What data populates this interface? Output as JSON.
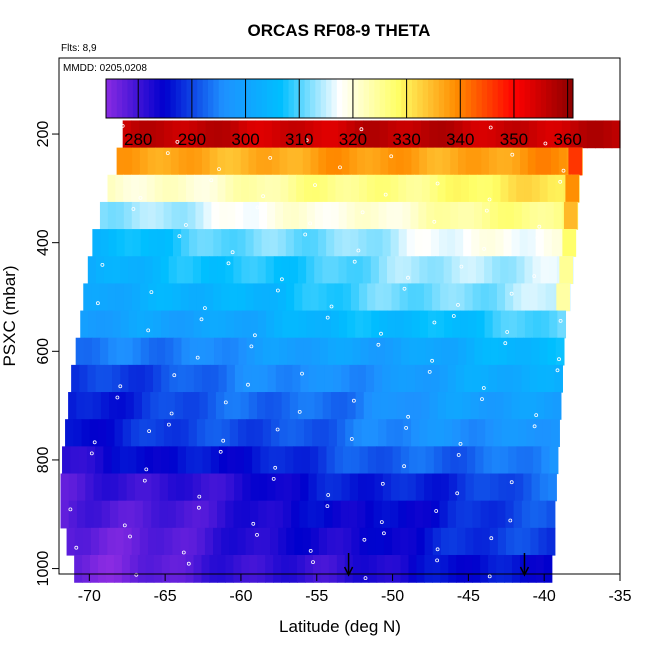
{
  "chart_data": {
    "type": "heatmap",
    "title": "ORCAS RF08-9 THETA",
    "subtitle_flights": "Flts: 8,9",
    "subtitle_dates": "MMDD: 0205,0208",
    "xlabel": "Latitude (deg N)",
    "ylabel": "PSXC (mbar)",
    "xlim": [
      -72,
      -35
    ],
    "ylim": [
      1010,
      60
    ],
    "x_ticks": [
      -70,
      -65,
      -60,
      -55,
      -50,
      -45,
      -40,
      -35
    ],
    "y_ticks": [
      200,
      400,
      600,
      800,
      1000
    ],
    "colorbar": {
      "range": [
        274,
        361
      ],
      "ticks": [
        280,
        290,
        300,
        310,
        320,
        330,
        340,
        350,
        360
      ],
      "colors": [
        "#8a2be2",
        "#0000cd",
        "#1e90ff",
        "#00bfff",
        "#ffffff",
        "#ffff66",
        "#ff8c00",
        "#ff0000",
        "#8b0000"
      ]
    },
    "pressure_bands": [
      {
        "p": 200,
        "lat_min": -67.8,
        "lat_max": -35.0,
        "theta_south": 355,
        "theta_north": 356,
        "note": "top layer with white obs near -67 to -62 and north of -38"
      },
      {
        "p": 250,
        "lat_min": -68.2,
        "lat_max": -37.5,
        "theta_south": 336,
        "theta_north": 338
      },
      {
        "p": 300,
        "lat_min": -68.8,
        "lat_max": -37.7,
        "theta_south": 320,
        "theta_north": 331
      },
      {
        "p": 350,
        "lat_min": -69.3,
        "lat_max": -37.8,
        "theta_south": 313,
        "theta_north": 327
      },
      {
        "p": 400,
        "lat_min": -69.8,
        "lat_max": -37.9,
        "theta_south": 306,
        "theta_north": 320
      },
      {
        "p": 450,
        "lat_min": -70.1,
        "lat_max": -38.1,
        "theta_south": 303,
        "theta_north": 317
      },
      {
        "p": 500,
        "lat_min": -70.4,
        "lat_max": -38.3,
        "theta_south": 300,
        "theta_north": 316
      },
      {
        "p": 550,
        "lat_min": -70.6,
        "lat_max": -38.6,
        "theta_south": 298,
        "theta_north": 310
      },
      {
        "p": 600,
        "lat_min": -70.9,
        "lat_max": -38.7,
        "theta_south": 293,
        "theta_north": 305
      },
      {
        "p": 650,
        "lat_min": -71.2,
        "lat_max": -38.8,
        "theta_south": 289,
        "theta_north": 303
      },
      {
        "p": 700,
        "lat_min": -71.4,
        "lat_max": -38.9,
        "theta_south": 287,
        "theta_north": 301
      },
      {
        "p": 750,
        "lat_min": -71.6,
        "lat_max": -39.0,
        "theta_south": 286,
        "theta_north": 299
      },
      {
        "p": 800,
        "lat_min": -71.8,
        "lat_max": -39.1,
        "theta_south": 282,
        "theta_north": 296
      },
      {
        "p": 850,
        "lat_min": -71.9,
        "lat_max": -39.2,
        "theta_south": 278,
        "theta_north": 292
      },
      {
        "p": 900,
        "lat_min": -71.9,
        "lat_max": -39.3,
        "theta_south": 277,
        "theta_north": 290
      },
      {
        "p": 950,
        "lat_min": -71.5,
        "lat_max": -39.3,
        "theta_south": 276,
        "theta_north": 290
      },
      {
        "p": 1000,
        "lat_min": -71.0,
        "lat_max": -39.5,
        "theta_south": 276,
        "theta_north": 287
      }
    ],
    "markers": [
      {
        "lat": -52.9,
        "type": "arrow-down"
      },
      {
        "lat": -41.3,
        "type": "arrow-down"
      }
    ],
    "grid": false,
    "legend": "colorbar-top-inside"
  }
}
